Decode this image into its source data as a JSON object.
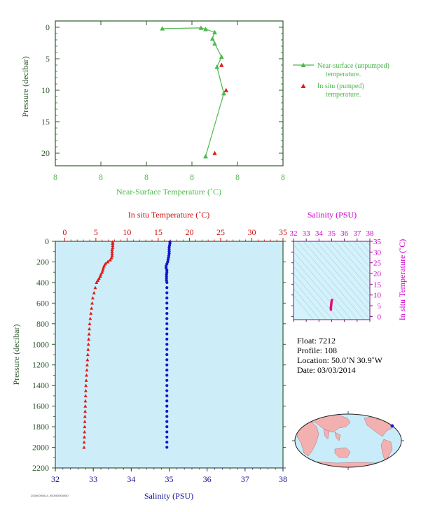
{
  "top_chart": {
    "xlabel": "Near-Surface Temperature (˚C)",
    "ylabel": "Pressure (decibar)",
    "x_tick_labels": [
      "8",
      "8",
      "8",
      "8",
      "8",
      "8"
    ],
    "y_tick_labels": [
      "0",
      "5",
      "10",
      "15",
      "20"
    ],
    "legend_unpumped": "Near-surface (unpumped) temperature.",
    "legend_unpumped_line1": "Near-surface (unpumped)",
    "legend_unpumped_line2": "temperature.",
    "legend_insitu_line1": "In situ (pumped)",
    "legend_insitu_line2": "temperature.",
    "colors": {
      "unpumped": "#4cb84c",
      "insitu": "#e11b1b",
      "axis": "#2e5a2e"
    }
  },
  "main_chart": {
    "top_xlabel": "In situ Temperature (˚C)",
    "bottom_xlabel": "Salinity (PSU)",
    "ylabel": "Pressure (decibar)",
    "temp_ticks": [
      "0",
      "5",
      "10",
      "15",
      "20",
      "25",
      "30",
      "35"
    ],
    "sal_ticks": [
      "32",
      "33",
      "34",
      "35",
      "36",
      "37",
      "38"
    ],
    "pres_ticks": [
      "0",
      "200",
      "400",
      "600",
      "800",
      "1000",
      "1200",
      "1400",
      "1600",
      "1800",
      "2000",
      "2200"
    ],
    "colors": {
      "temperature": "#e11b1b",
      "salinity": "#1414d2",
      "background": "#cdeef8",
      "axis": "#2e5a2e",
      "temp_axis": "#cc1111",
      "sal_axis": "#141496"
    }
  },
  "ts_chart": {
    "top_xlabel": "Salinity (PSU)",
    "ylabel": "In situ Temperature (˚C)",
    "sal_ticks": [
      "32",
      "33",
      "34",
      "35",
      "36",
      "37",
      "38"
    ],
    "temp_ticks": [
      "0",
      "5",
      "10",
      "15",
      "20",
      "25",
      "30",
      "35"
    ],
    "colors": {
      "label": "#cc00cc",
      "point": "#e0107a",
      "background": "#d4f2fb"
    }
  },
  "float_info": {
    "float": "Float:  7212",
    "profile": "Profile:  108",
    "location": "Location:  50.0˚N  30.9˚W",
    "date": "Date:  03/03/2014"
  },
  "map": {
    "marker_lat": 50.0,
    "marker_lon": -30.9,
    "colors": {
      "ocean": "#c8ecfa",
      "land": "#f3b0b0",
      "marker": "#1a1ad6"
    }
  },
  "footer_id": "Z0000000014_000000000000",
  "chart_data": [
    {
      "type": "line",
      "name": "near-surface",
      "xlabel": "Near-Surface Temperature (˚C)",
      "ylabel": "Pressure (decibar)",
      "ylim": [
        22,
        -1
      ],
      "series": [
        {
          "name": "Near-surface (unpumped) temperature.",
          "x": [
            7.87,
            8.04,
            8.06,
            8.1,
            8.09,
            8.1,
            8.13,
            8.11,
            8.14,
            8.06
          ],
          "y": [
            0.2,
            0.1,
            0.3,
            0.8,
            1.8,
            2.6,
            4.7,
            6.3,
            10.5,
            20.5
          ]
        },
        {
          "name": "In situ (pumped) temperature.",
          "x": [
            8.13,
            8.15,
            8.1
          ],
          "y": [
            6.0,
            10.0,
            20.0
          ]
        }
      ]
    },
    {
      "type": "scatter",
      "name": "profile",
      "ylabel": "Pressure (decibar)",
      "ylim": [
        2200,
        0
      ],
      "temperature_xlabel": "In situ Temperature (˚C)",
      "temperature_xlim": [
        -1.5,
        35
      ],
      "salinity_xlabel": "Salinity (PSU)",
      "salinity_xlim": [
        32,
        38
      ],
      "pressure": [
        5,
        20,
        40,
        60,
        80,
        100,
        120,
        140,
        160,
        180,
        200,
        220,
        240,
        260,
        280,
        300,
        320,
        340,
        360,
        380,
        400,
        450,
        500,
        550,
        600,
        650,
        700,
        750,
        800,
        850,
        900,
        950,
        1000,
        1050,
        1100,
        1150,
        1200,
        1250,
        1300,
        1350,
        1400,
        1450,
        1500,
        1550,
        1600,
        1650,
        1700,
        1750,
        1800,
        1850,
        1900,
        1950,
        2000
      ],
      "temperature": [
        7.7,
        7.7,
        7.7,
        7.7,
        7.6,
        7.6,
        7.6,
        7.6,
        7.5,
        7.3,
        6.9,
        6.5,
        6.3,
        6.2,
        6.1,
        6.0,
        5.8,
        5.7,
        5.5,
        5.3,
        5.1,
        4.9,
        4.7,
        4.5,
        4.4,
        4.3,
        4.2,
        4.1,
        4.0,
        3.95,
        3.9,
        3.85,
        3.8,
        3.75,
        3.7,
        3.65,
        3.6,
        3.55,
        3.5,
        3.45,
        3.4,
        3.38,
        3.35,
        3.32,
        3.3,
        3.28,
        3.25,
        3.22,
        3.2,
        3.18,
        3.15,
        3.12,
        3.1
      ],
      "salinity": [
        35.02,
        35.02,
        35.01,
        35.0,
        35.0,
        35.0,
        35.0,
        34.99,
        34.98,
        34.97,
        34.96,
        34.94,
        34.92,
        34.92,
        34.94,
        34.94,
        34.93,
        34.93,
        34.93,
        34.93,
        34.94,
        34.94,
        34.94,
        34.94,
        34.94,
        34.94,
        34.94,
        34.94,
        34.94,
        34.94,
        34.94,
        34.94,
        34.94,
        34.94,
        34.94,
        34.94,
        34.94,
        34.94,
        34.94,
        34.94,
        34.94,
        34.94,
        34.94,
        34.94,
        34.94,
        34.94,
        34.94,
        34.94,
        34.94,
        34.94,
        34.94,
        34.94,
        34.94
      ]
    },
    {
      "type": "scatter",
      "name": "t-s diagram",
      "xlabel": "Salinity (PSU)",
      "ylabel": "In situ Temperature (˚C)",
      "xlim": [
        32,
        38
      ],
      "ylim": [
        -1.5,
        35
      ],
      "x": [
        34.94,
        34.94,
        34.94,
        34.94,
        34.95,
        34.96,
        34.97,
        34.98,
        35.0,
        35.02
      ],
      "y": [
        3.2,
        3.6,
        4.0,
        4.4,
        4.8,
        5.5,
        6.1,
        6.5,
        7.2,
        7.7
      ]
    }
  ]
}
